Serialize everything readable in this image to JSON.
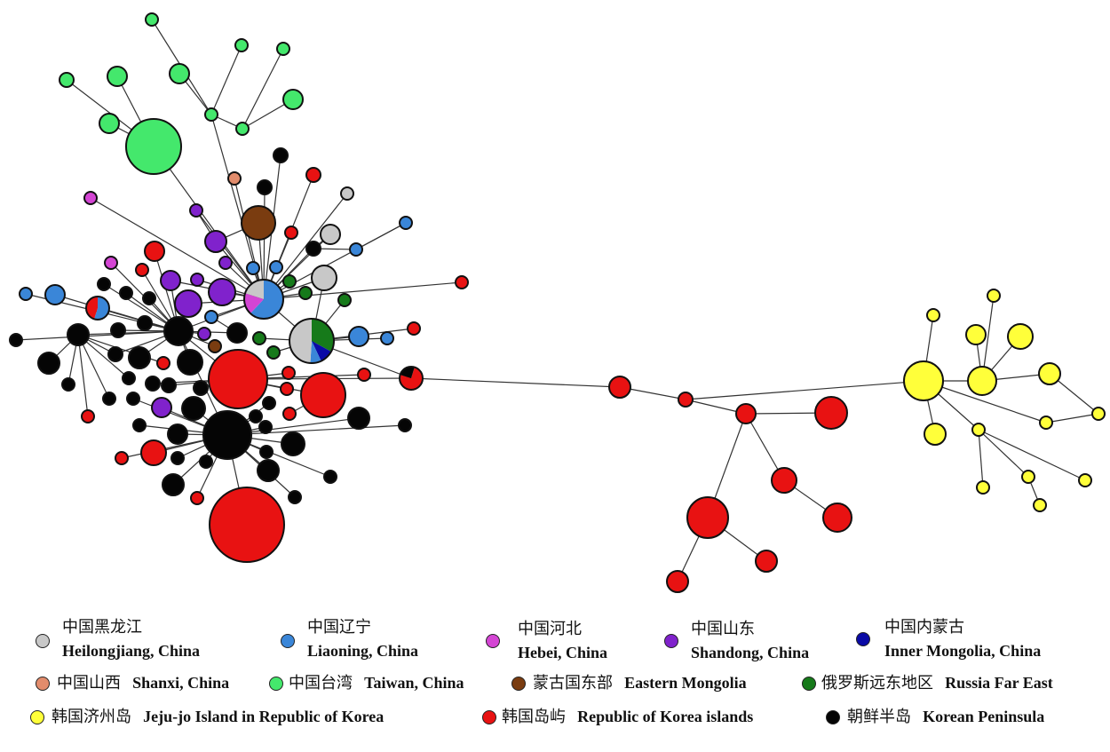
{
  "colors": {
    "heilongjiang": "#c8c8c8",
    "liaoning": "#3a86d8",
    "hebei": "#d445d4",
    "shandong": "#8022cc",
    "inner_mongolia": "#0a0aa6",
    "shanxi": "#e28c6c",
    "taiwan": "#44e86c",
    "eastern_mongolia": "#7a3c10",
    "russia_far_east": "#167a1a",
    "jeju": "#ffff3a",
    "korea_islands": "#e81212",
    "korean_peninsula": "#050505"
  },
  "legend": {
    "heilongjiang": {
      "zh": "中国黑龙江",
      "en": "Heilongjiang, China",
      "color": "#c8c8c8"
    },
    "liaoning": {
      "zh": "中国辽宁",
      "en": "Liaoning, China",
      "color": "#3a86d8"
    },
    "hebei": {
      "zh": "中国河北",
      "en": "Hebei, China",
      "color": "#d445d4"
    },
    "shandong": {
      "zh": "中国山东",
      "en": "Shandong, China",
      "color": "#8022cc"
    },
    "inner_mongolia": {
      "zh": "中国内蒙古",
      "en": "Inner Mongolia, China",
      "color": "#0a0aa6"
    },
    "shanxi": {
      "zh": "中国山西",
      "en": "Shanxi, China",
      "color": "#e28c6c"
    },
    "taiwan": {
      "zh": "中国台湾",
      "en": "Taiwan, China",
      "color": "#44e86c"
    },
    "eastern_mongolia": {
      "zh": "蒙古国东部",
      "en": "Eastern Mongolia",
      "color": "#7a3c10"
    },
    "russia_far_east": {
      "zh": "俄罗斯远东地区",
      "en": "Russia Far East",
      "color": "#167a1a"
    },
    "jeju": {
      "zh": "韩国济州岛",
      "en": "Jeju-jo Island in Republic of Korea",
      "color": "#ffff3a"
    },
    "korea_islands": {
      "zh": "韩国岛屿",
      "en": "Republic of Korea islands",
      "color": "#e81212"
    },
    "korean_peninsula": {
      "zh": "朝鲜半岛",
      "en": "Korean Peninsula",
      "color": "#050505"
    }
  }
}
